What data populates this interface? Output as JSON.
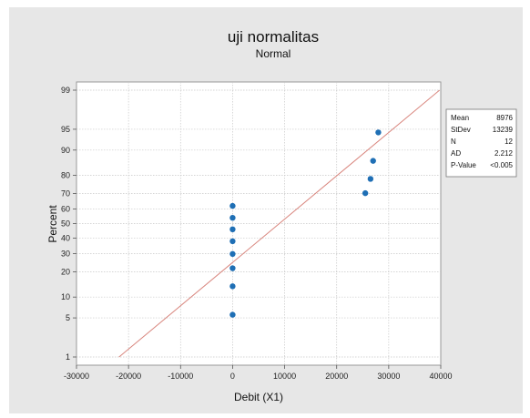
{
  "chart_data": {
    "type": "scatter",
    "title": "uji normalitas",
    "subtitle": "Normal",
    "xlabel": "Debit (X1)",
    "ylabel": "Percent",
    "xlim": [
      -30000,
      40000
    ],
    "x_ticks": [
      -30000,
      -20000,
      -10000,
      0,
      10000,
      20000,
      30000,
      40000
    ],
    "x_tick_labels": [
      "-30000",
      "-20000",
      "-10000",
      "0",
      "10000",
      "20000",
      "30000",
      "40000"
    ],
    "y_scale": "normal-probability",
    "y_ticks": [
      1,
      5,
      10,
      20,
      30,
      40,
      50,
      60,
      70,
      80,
      90,
      95,
      99
    ],
    "y_tick_labels": [
      "1",
      "5",
      "10",
      "20",
      "30",
      "40",
      "50",
      "60",
      "70",
      "80",
      "90",
      "95",
      "99"
    ],
    "grid": true,
    "series": [
      {
        "points": [
          {
            "x": 0,
            "y": 5.6
          },
          {
            "x": 0,
            "y": 13.7
          },
          {
            "x": 0,
            "y": 21.8
          },
          {
            "x": 0,
            "y": 29.8
          },
          {
            "x": 0,
            "y": 37.9
          },
          {
            "x": 0,
            "y": 46.0
          },
          {
            "x": 0,
            "y": 54.0
          },
          {
            "x": 0,
            "y": 62.1
          },
          {
            "x": 25500,
            "y": 70.2
          },
          {
            "x": 26500,
            "y": 78.2
          },
          {
            "x": 27000,
            "y": 86.3
          },
          {
            "x": 28000,
            "y": 94.4
          }
        ],
        "color": "#1f6fb5"
      }
    ],
    "fit_line": {
      "mean": 8976,
      "stdev": 13239,
      "color": "#d9877f"
    },
    "stats_box": {
      "placement": "top-right",
      "rows": [
        {
          "label": "Mean",
          "value": "8976"
        },
        {
          "label": "StDev",
          "value": "13239"
        },
        {
          "label": "N",
          "value": "12"
        },
        {
          "label": "AD",
          "value": "2.212"
        },
        {
          "label": "P-Value",
          "value": "<0.005"
        }
      ]
    }
  }
}
